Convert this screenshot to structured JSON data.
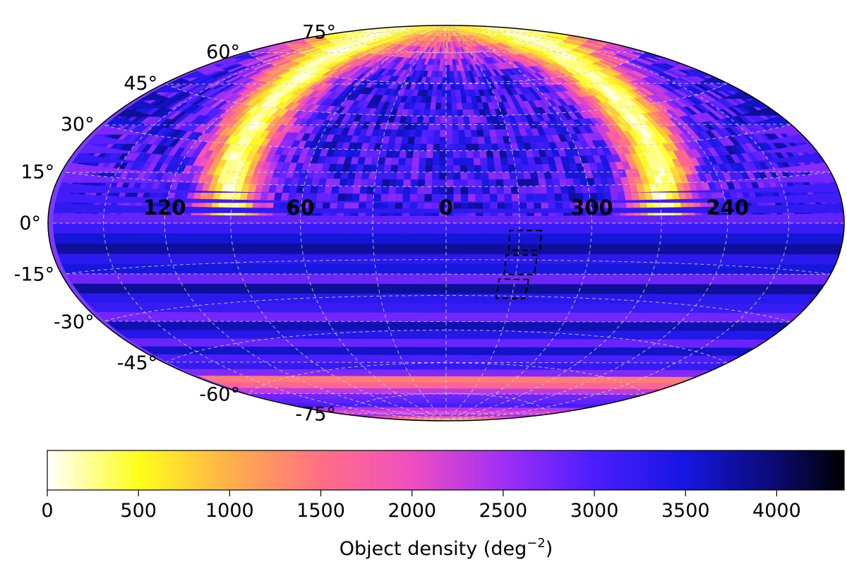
{
  "chart_data": {
    "type": "heatmap",
    "projection": "hammer",
    "coordinate_system": "galactic",
    "title": "",
    "grid": true,
    "lon_tick_labels": [
      {
        "lon": 120,
        "label": "120"
      },
      {
        "lon": 60,
        "label": "60"
      },
      {
        "lon": 0,
        "label": "0"
      },
      {
        "lon": 300,
        "label": "300"
      },
      {
        "lon": 240,
        "label": "240"
      }
    ],
    "lat_tick_labels": [
      {
        "lat": 75,
        "label": "75°"
      },
      {
        "lat": 60,
        "label": "60°"
      },
      {
        "lat": 45,
        "label": "45°"
      },
      {
        "lat": 30,
        "label": "30°"
      },
      {
        "lat": 15,
        "label": "15°"
      },
      {
        "lat": 0,
        "label": "0°"
      },
      {
        "lat": -15,
        "label": "-15°"
      },
      {
        "lat": -30,
        "label": "-30°"
      },
      {
        "lat": -45,
        "label": "-45°"
      },
      {
        "lat": -60,
        "label": "-60°"
      },
      {
        "lat": -75,
        "label": "-75°"
      }
    ],
    "density_pattern": {
      "pole_value": 1400,
      "background_high": 3200,
      "low_density_ring": {
        "center_lon": 0,
        "center_lat": 10,
        "radius_deg": 90,
        "width_deg": 14,
        "min_value": 150
      },
      "south_zone_ring": {
        "center_lon": 0,
        "center_lat": -88,
        "radius_deg": 38,
        "width_deg": 6,
        "min_value": 700
      }
    },
    "dashed_fields": [
      {
        "lon": [
          321,
          334
        ],
        "lat": [
          -3,
          -11
        ]
      },
      {
        "lon": [
          322,
          335
        ],
        "lat": [
          -13,
          -21
        ]
      },
      {
        "lon": [
          324,
          337
        ],
        "lat": [
          -23,
          -31
        ]
      }
    ],
    "colorbar": {
      "label": "Object density (deg",
      "label_exponent": "−2",
      "label_suffix": ")",
      "colormap": "gnuplot2_r",
      "range": [
        0,
        4370
      ],
      "ticks": [
        {
          "value": 0,
          "label": "0"
        },
        {
          "value": 500,
          "label": "500"
        },
        {
          "value": 1000,
          "label": "1000"
        },
        {
          "value": 1500,
          "label": "1500"
        },
        {
          "value": 2000,
          "label": "2000"
        },
        {
          "value": 2500,
          "label": "2500"
        },
        {
          "value": 3000,
          "label": "3000"
        },
        {
          "value": 3500,
          "label": "3500"
        },
        {
          "value": 4000,
          "label": "4000"
        }
      ],
      "stops": [
        {
          "value": 0,
          "color": "#ffffff"
        },
        {
          "value": 500,
          "color": "#ffff1a"
        },
        {
          "value": 1000,
          "color": "#ffb04a"
        },
        {
          "value": 1500,
          "color": "#ff6f84"
        },
        {
          "value": 2000,
          "color": "#f04ec0"
        },
        {
          "value": 2500,
          "color": "#a02ff5"
        },
        {
          "value": 3000,
          "color": "#4b1eff"
        },
        {
          "value": 3500,
          "color": "#1616e0"
        },
        {
          "value": 4000,
          "color": "#0a0a70"
        },
        {
          "value": 4370,
          "color": "#000000"
        }
      ]
    }
  }
}
